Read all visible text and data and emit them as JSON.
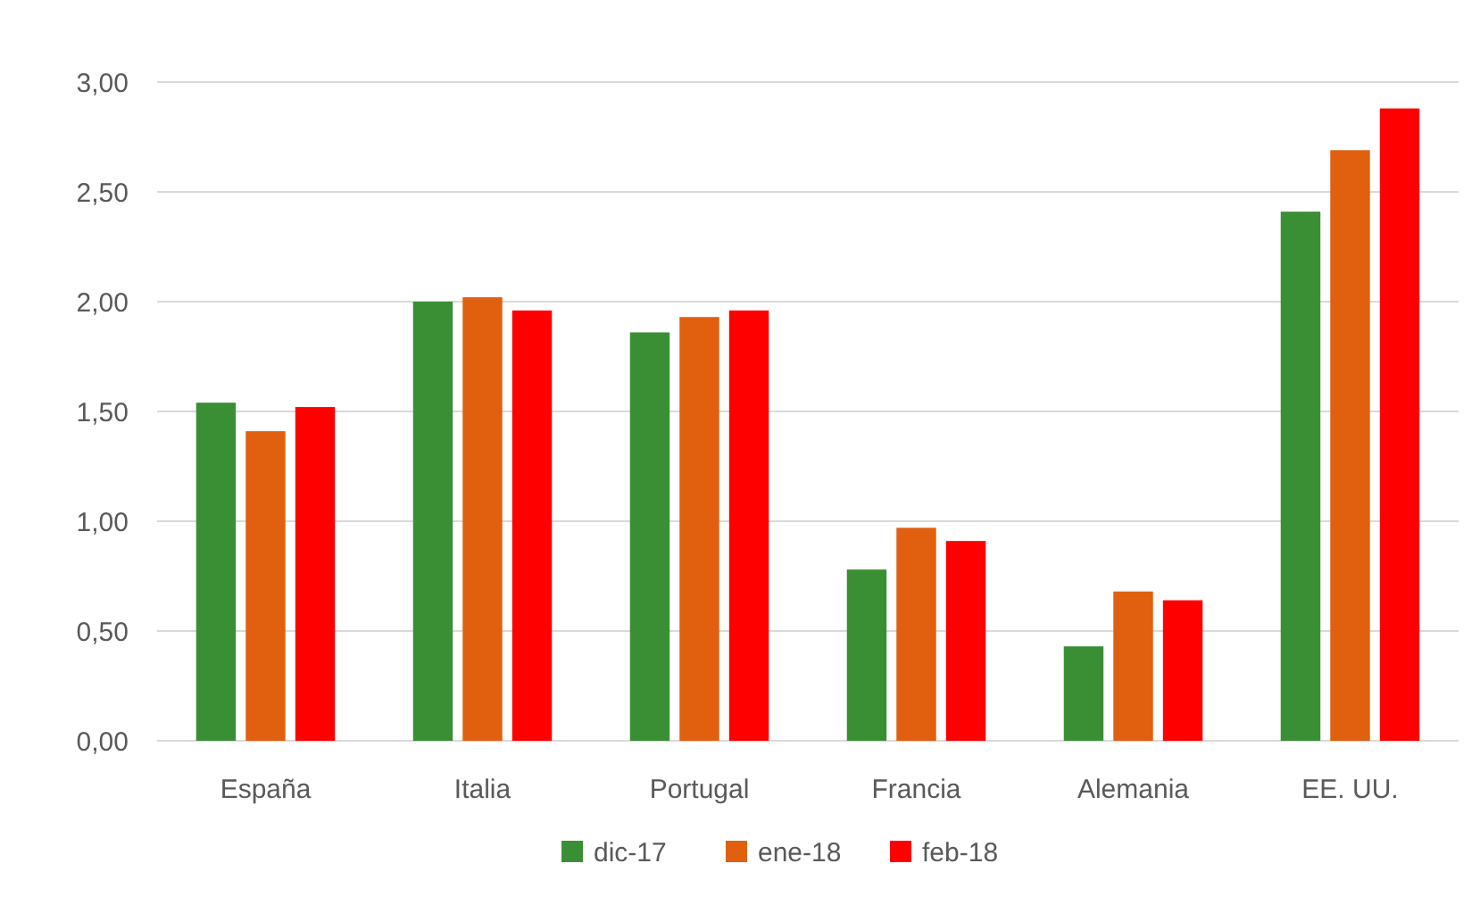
{
  "chart_data": {
    "type": "bar",
    "categories": [
      "España",
      "Italia",
      "Portugal",
      "Francia",
      "Alemania",
      "EE. UU."
    ],
    "series": [
      {
        "name": "dic-17",
        "color": "#3a8f34",
        "values": [
          1.54,
          2.0,
          1.86,
          0.78,
          0.43,
          2.41
        ]
      },
      {
        "name": "ene-18",
        "color": "#e0600f",
        "values": [
          1.41,
          2.02,
          1.93,
          0.97,
          0.68,
          2.69
        ]
      },
      {
        "name": "feb-18",
        "color": "#ff0000",
        "values": [
          1.52,
          1.96,
          1.96,
          0.91,
          0.64,
          2.88
        ]
      }
    ],
    "ylim": [
      0,
      3
    ],
    "yticks": [
      {
        "value": 0,
        "label": "0,00"
      },
      {
        "value": 0.5,
        "label": "0,50"
      },
      {
        "value": 1,
        "label": "1,00"
      },
      {
        "value": 1.5,
        "label": "1,50"
      },
      {
        "value": 2,
        "label": "2,00"
      },
      {
        "value": 2.5,
        "label": "2,50"
      },
      {
        "value": 3,
        "label": "3,00"
      }
    ],
    "grid": "y",
    "legend": "bottom"
  }
}
